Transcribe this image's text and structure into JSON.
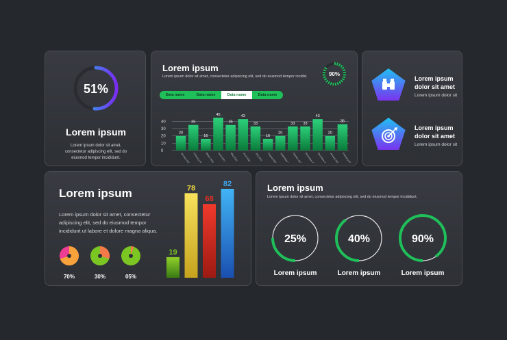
{
  "card1": {
    "percent": "51%",
    "ring_fraction": 0.51,
    "title": "Lorem ipsum",
    "text": "Lorem ipsum dolor sit amet, consectetur adipiscing elit, sed do eiusmod tempor incididunt."
  },
  "card2": {
    "title": "Lorem ipsum",
    "subtitle": "Lorem ipsum dolor sit amet, consectetur adipiscing elit, sed do eiusmod tempor incidid.",
    "badge": "90%",
    "badge_fraction": 0.9,
    "tabs": [
      "Data name",
      "Data name",
      "Data name",
      "Data name"
    ],
    "active_tab": 2
  },
  "card3": {
    "items": [
      {
        "icon": "binoculars-icon",
        "title_line1": "Lorem ipsum",
        "title_line2": "dolor sit amet",
        "text": "Lorem ipsum dolor sit"
      },
      {
        "icon": "target-icon",
        "title_line1": "Lorem ipsum",
        "title_line2": "dolor sit amet",
        "text": "Lorem ipsum dolor sit"
      }
    ]
  },
  "card4": {
    "title": "Lorem ipsum",
    "text": "Lorem ipsum dolor sit amet, consectetur adipiscing elit, sed do eiusmod tempor incididunt ut labore et dolore magna aliqua.",
    "pies": [
      {
        "label": "70%",
        "fraction": 0.7
      },
      {
        "label": "30%",
        "fraction": 0.3
      },
      {
        "label": "05%",
        "fraction": 0.05
      }
    ]
  },
  "card5": {
    "title": "Lorem ipsum",
    "text": "Lorem ipsum dolor sit amet, consectetur adipiscing elit, sed do eiusmod tempor incididunt.",
    "rings": [
      {
        "percent": "25%",
        "fraction": 0.25,
        "label": "Lorem ipsum"
      },
      {
        "percent": "40%",
        "fraction": 0.4,
        "label": "Lorem ipsum"
      },
      {
        "percent": "90%",
        "fraction": 0.9,
        "label": "Lorem ipsum"
      }
    ]
  },
  "colors": {
    "accent_green": "#1fbf5a",
    "ring_blue": "#2d7cf0",
    "ring_purple": "#7a3cf0"
  },
  "chart_data": [
    {
      "type": "bar",
      "categories": [
        "January 2021",
        "February 2021",
        "March 2021",
        "April 2021",
        "May 2021",
        "June 2021",
        "July 2021",
        "August 2021",
        "September 2021",
        "October 2021",
        "November 2021",
        "December 2021",
        "January 2022",
        "February 2022"
      ],
      "values": [
        20,
        35,
        16,
        45,
        35,
        43,
        33,
        16,
        20,
        33,
        33,
        43,
        20,
        36
      ],
      "yticks": [
        0,
        10,
        20,
        30,
        40
      ],
      "ylim": [
        0,
        45
      ],
      "title": "",
      "xlabel": "",
      "ylabel": "",
      "grid": true
    },
    {
      "type": "bar",
      "categories": [
        "",
        "",
        "",
        ""
      ],
      "values": [
        19,
        78,
        68,
        82
      ],
      "colors": [
        "#7cc623",
        "#f5d840",
        "#ef2f25",
        "#3fa8f2"
      ],
      "ylim": [
        0,
        82
      ],
      "title": "",
      "xlabel": "",
      "ylabel": ""
    }
  ]
}
